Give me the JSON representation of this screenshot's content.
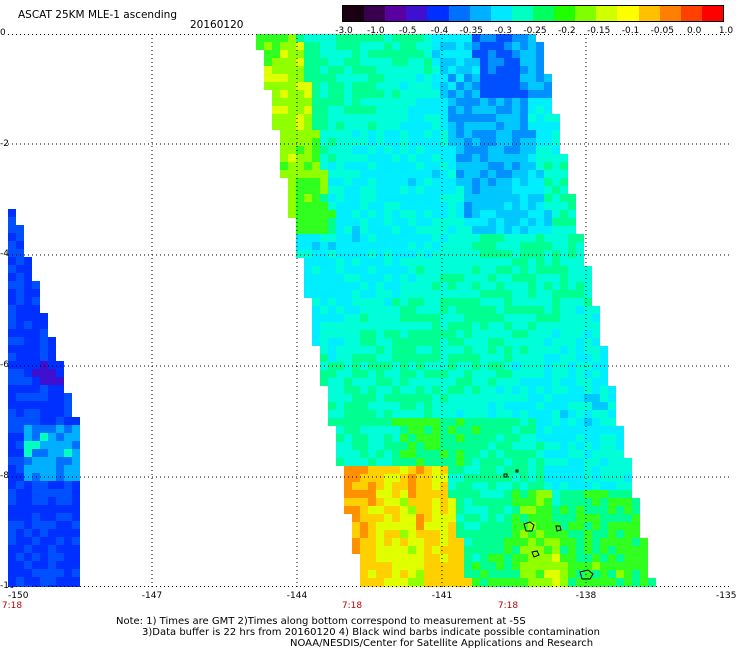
{
  "header": {
    "title": "ASCAT 25KM MLE-1 ascending",
    "date": "20160120"
  },
  "colorbar": {
    "labels": [
      "-3.0",
      "-1.0",
      "-0.5",
      "-0.4",
      "-0.35",
      "-0.3",
      "-0.25",
      "-0.2",
      "-0.15",
      "-0.1",
      "-0.05",
      "0.0",
      "1.0"
    ],
    "colors": [
      "#1a0010",
      "#3a0050",
      "#5a00a0",
      "#4010d0",
      "#0030ff",
      "#0070ff",
      "#00b0ff",
      "#00e8ff",
      "#00ffc0",
      "#00ff60",
      "#20ff00",
      "#80ff00",
      "#d0ff00",
      "#ffff00",
      "#ffc000",
      "#ff8000",
      "#ff4000",
      "#ff0000"
    ]
  },
  "axes": {
    "x_labels": [
      "-150",
      "-147",
      "-144",
      "-141",
      "-138",
      "-135"
    ],
    "y_labels": [
      "0",
      "-2",
      "-4",
      "-6",
      "-8",
      "-10"
    ],
    "time_labels": [
      "7:18",
      "7:18",
      "7:18"
    ],
    "grid": "dotted"
  },
  "notes": {
    "line1": "Note: 1) Times are GMT 2)Times along bottom correspond to measurement at -5S",
    "line2": "3)Data buffer is 22 hrs from 20160120 4) Black wind barbs indicate possible contamination",
    "credit": "NOAA/NESDIS/Center for Satellite Applications and Research"
  }
}
